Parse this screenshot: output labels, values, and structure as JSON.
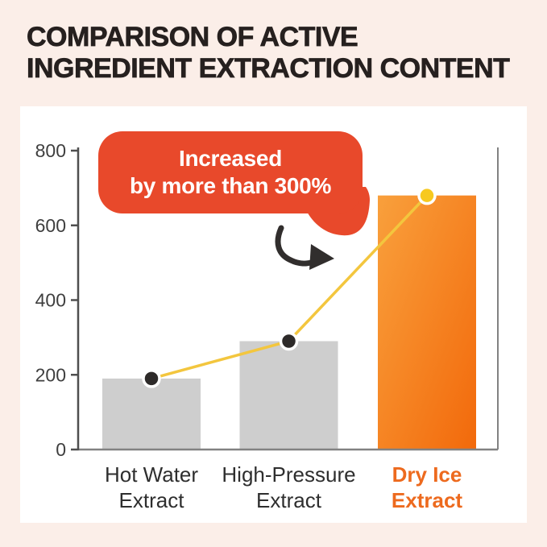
{
  "title": {
    "line1": "COMPARISON OF ACTIVE",
    "line2": "INGREDIENT EXTRACTION CONTENT"
  },
  "chart_data": {
    "type": "bar",
    "title": "Comparison of Active Ingredient Extraction Content",
    "categories": [
      "Hot Water Extract",
      "High-Pressure Extract",
      "Dry Ice Extract"
    ],
    "category_lines": [
      [
        "Hot Water",
        "Extract"
      ],
      [
        "High-Pressure",
        "Extract"
      ],
      [
        "Dry Ice",
        "Extract"
      ]
    ],
    "values": [
      190,
      290,
      680
    ],
    "highlight_index": 2,
    "xlabel": "",
    "ylabel": "",
    "ylim": [
      0,
      800
    ],
    "yticks": [
      0,
      200,
      400,
      600,
      800
    ],
    "grid": false,
    "legend": false,
    "overlay_line": {
      "type": "line",
      "x": [
        "Hot Water Extract",
        "High-Pressure Extract",
        "Dry Ice Extract"
      ],
      "values": [
        190,
        290,
        680
      ],
      "marker_colors": [
        "dark",
        "dark",
        "yellow"
      ]
    },
    "annotation": {
      "line1": "Increased",
      "line2": "by more than 300%"
    }
  },
  "colors": {
    "page_bg": "#FBEEE8",
    "panel_bg": "#FFFFFF",
    "title_text": "#26201F",
    "bubble_red": "#E8492B",
    "bubble_text": "#FFFFFF",
    "bar_gray": "#CECECE",
    "bar_orange_light": "#F9A03C",
    "bar_orange_dark": "#F2690B",
    "line_yellow": "#F3C63E",
    "dot_dark": "#2D2A29",
    "dot_yellow": "#F7C91F",
    "dot_ring": "#FFFFFF",
    "axis_dark": "#4F4F4F",
    "axis_light": "#828282",
    "tick_text": "#3F3F3F",
    "category_text": "#2E2E2E",
    "category_highlight": "#ED6A1E",
    "arrow_black": "#312E2D"
  }
}
